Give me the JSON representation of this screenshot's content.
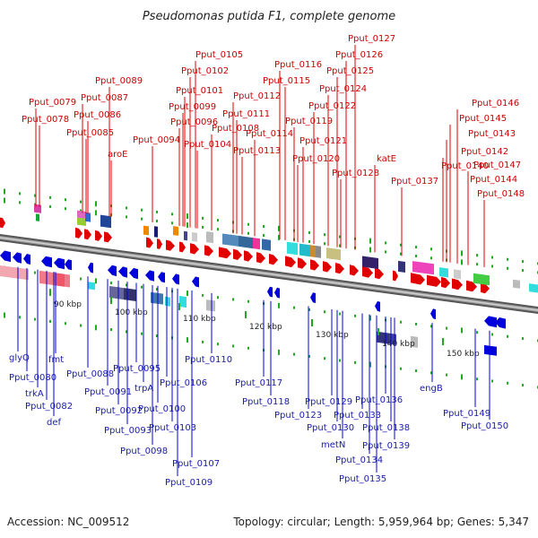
{
  "title": "Pseudomonas putida F1, complete genome",
  "footer": {
    "accession": "Accession: NC_009512",
    "summary": "Topology: circular; Length: 5,959,964 bp; Genes: 5,347"
  },
  "colors": {
    "forward": "#e00000",
    "reverse": "#0000dd",
    "forward_label": "#cc0000",
    "reverse_label": "#1a1aaa",
    "backbone": "#666666",
    "tick": "#22aa22"
  },
  "kbp_markers": [
    "90 kbp",
    "100 kbp",
    "110 kbp",
    "120 kbp",
    "130 kbp",
    "140 kbp",
    "150 kbp"
  ],
  "forward_genes": [
    "Pput_0079",
    "Pput_0078",
    "Pput_0087",
    "Pput_0089",
    "Pput_0086",
    "Pput_0085",
    "aroE",
    "Pput_0096",
    "Pput_0094",
    "Pput_0105",
    "Pput_0102",
    "Pput_0101",
    "Pput_0099",
    "Pput_0104",
    "Pput_0112",
    "Pput_0111",
    "Pput_0108",
    "Pput_0116",
    "Pput_0115",
    "Pput_0114",
    "Pput_0113",
    "Pput_0119",
    "Pput_0122",
    "Pput_0121",
    "Pput_0120",
    "Pput_0127",
    "Pput_0126",
    "Pput_0125",
    "Pput_0124",
    "Pput_0128",
    "katE",
    "Pput_0137",
    "Pput_0140",
    "Pput_0146",
    "Pput_0145",
    "Pput_0143",
    "Pput_0142",
    "Pput_0144",
    "Pput_0147",
    "Pput_0148"
  ],
  "reverse_genes": [
    "glyQ",
    "Pput_0080",
    "trkA",
    "Pput_0082",
    "def",
    "fmt",
    "Pput_0088",
    "Pput_0091",
    "Pput_0092",
    "Pput_0093",
    "Pput_0095",
    "trpA",
    "Pput_0098",
    "Pput_0100",
    "Pput_0106",
    "Pput_0103",
    "Pput_0107",
    "Pput_0109",
    "Pput_0110",
    "Pput_0117",
    "Pput_0118",
    "Pput_0123",
    "Pput_0129",
    "Pput_0130",
    "metN",
    "Pput_0133",
    "Pput_0134",
    "Pput_0135",
    "Pput_0136",
    "Pput_0138",
    "Pput_0139",
    "engB",
    "Pput_0149",
    "Pput_0150"
  ]
}
